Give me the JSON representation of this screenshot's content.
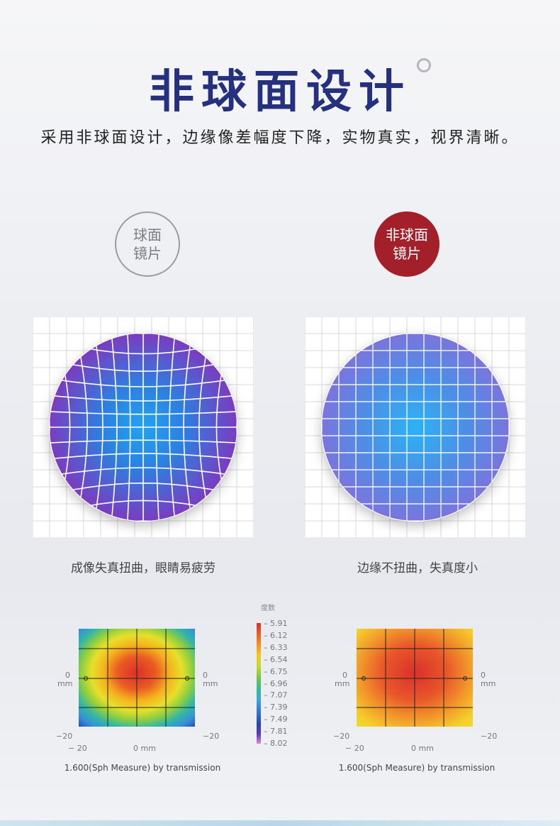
{
  "header": {
    "title": "非球面设计",
    "subtitle": "采用非球面设计，边缘像差幅度下降，实物真实，视界清晰。"
  },
  "comparison": {
    "left": {
      "badge_line1": "球面",
      "badge_line2": "镜片",
      "caption": "成像失真扭曲，眼睛易疲劳"
    },
    "right": {
      "badge_line1": "非球面",
      "badge_line2": "镜片",
      "caption": "边缘不扭曲，失真度小"
    }
  },
  "maps": {
    "axis": {
      "zero": "0",
      "unit": "mm",
      "minus20": "− 20",
      "minus20_short": "−20",
      "xzero": "0 mm"
    },
    "caption_left": "1.600(Sph Measure) by transmission",
    "caption_right": "1.600(Sph Measure) by transmission"
  },
  "legend": {
    "title": "度数",
    "values": [
      "5.91",
      "6.12",
      "6.33",
      "6.54",
      "6.75",
      "6.96",
      "7.07",
      "7.39",
      "7.49",
      "7.81",
      "8.02"
    ]
  },
  "colors": {
    "title": "#25307e",
    "badge_active": "#a31f2a"
  }
}
